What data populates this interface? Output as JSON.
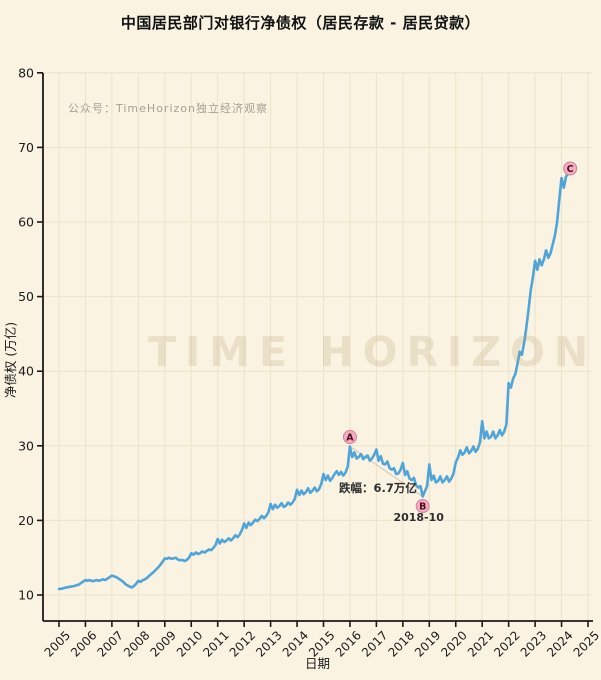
{
  "title": "中国居民部门对银行净债权（居民存款 - 居民贷款）",
  "watermark_top": "公众号：TimeHorizon独立经济观察",
  "watermark_center": "TIME HORIZON",
  "chart_data": {
    "type": "line",
    "title": "中国居民部门对银行净债权（居民存款 - 居民贷款）",
    "xlabel": "日期",
    "ylabel": "净债权 (万亿)",
    "legend": [],
    "grid": true,
    "x_start": "2005-01",
    "freq": "monthly",
    "x_ticks": [
      "2005",
      "2006",
      "2007",
      "2008",
      "2009",
      "2010",
      "2011",
      "2012",
      "2013",
      "2014",
      "2015",
      "2016",
      "2017",
      "2018",
      "2019",
      "2020",
      "2021",
      "2022",
      "2023",
      "2024",
      "2025"
    ],
    "y_ticks": [
      "10",
      "20",
      "30",
      "40",
      "50",
      "60",
      "70",
      "80"
    ],
    "ylim": [
      6.5,
      80
    ],
    "xlim": [
      2004.4,
      2025.2
    ],
    "values": [
      10.8,
      10.85,
      10.9,
      11.0,
      11.05,
      11.1,
      11.15,
      11.2,
      11.3,
      11.4,
      11.6,
      11.8,
      12.0,
      11.9,
      12.0,
      11.85,
      11.9,
      12.0,
      11.9,
      12.0,
      12.1,
      12.0,
      12.2,
      12.4,
      12.6,
      12.5,
      12.4,
      12.2,
      12.0,
      11.8,
      11.5,
      11.3,
      11.15,
      11.0,
      11.2,
      11.5,
      11.9,
      11.75,
      12.0,
      12.1,
      12.3,
      12.6,
      12.85,
      13.1,
      13.4,
      13.7,
      14.05,
      14.45,
      14.9,
      14.85,
      15.0,
      14.85,
      14.9,
      15.0,
      14.75,
      14.65,
      14.7,
      14.55,
      14.7,
      15.0,
      15.6,
      15.4,
      15.7,
      15.5,
      15.6,
      15.85,
      15.7,
      15.9,
      16.1,
      16.0,
      16.3,
      16.7,
      17.5,
      16.9,
      17.4,
      17.1,
      17.3,
      17.6,
      17.3,
      17.6,
      18.0,
      17.75,
      18.1,
      18.7,
      19.6,
      19.0,
      19.7,
      19.35,
      19.7,
      20.1,
      19.9,
      20.2,
      20.6,
      20.3,
      20.6,
      21.1,
      22.2,
      21.5,
      22.1,
      21.7,
      21.9,
      22.3,
      21.8,
      22.0,
      22.4,
      22.1,
      22.4,
      22.9,
      24.1,
      23.4,
      24.0,
      23.5,
      23.8,
      24.3,
      23.7,
      24.0,
      24.4,
      23.9,
      24.2,
      24.9,
      26.2,
      25.4,
      26.0,
      25.3,
      25.7,
      26.2,
      26.6,
      26.1,
      26.5,
      26.0,
      26.4,
      27.2,
      29.9,
      28.5,
      29.1,
      28.3,
      28.5,
      28.9,
      28.2,
      28.5,
      28.7,
      28.0,
      28.3,
      28.8,
      29.5,
      28.0,
      28.6,
      27.6,
      27.5,
      27.9,
      27.0,
      26.8,
      27.0,
      26.2,
      26.3,
      26.8,
      27.7,
      26.1,
      26.6,
      25.6,
      25.4,
      25.7,
      24.7,
      24.4,
      24.6,
      23.2,
      23.9,
      24.6,
      27.5,
      25.4,
      26.0,
      25.1,
      25.3,
      25.9,
      25.1,
      25.4,
      25.9,
      25.2,
      25.6,
      26.3,
      27.8,
      28.4,
      29.4,
      28.8,
      29.1,
      29.8,
      29.0,
      29.3,
      29.9,
      29.2,
      29.6,
      30.5,
      33.3,
      31.0,
      31.9,
      31.0,
      31.2,
      31.9,
      31.0,
      31.4,
      32.1,
      31.4,
      31.9,
      32.9,
      38.4,
      37.8,
      39.0,
      39.6,
      41.0,
      42.6,
      42.2,
      43.8,
      45.8,
      48.2,
      50.8,
      52.6,
      54.8,
      53.6,
      55.0,
      54.2,
      55.0,
      56.2,
      55.2,
      55.8,
      57.0,
      58.2,
      60.0,
      63.0,
      65.9,
      64.6,
      66.1,
      66.5
    ],
    "annotations": {
      "a": {
        "letter": "A",
        "month": "2016-01",
        "value": 29.9
      },
      "b": {
        "letter": "B",
        "month": "2018-10",
        "value": 23.2,
        "caption": "2018-10"
      },
      "c": {
        "letter": "C",
        "month": "2024-04",
        "value": 66.5
      },
      "drop_label": "跌幅：6.7万亿"
    },
    "colors": {
      "background": "#faf3e1",
      "line": "#4fa4da",
      "grid": "#ece3c9",
      "axis": "#1a1a1a",
      "tick_text": "#1b1b1b",
      "annotation_text": "#2e2e2e",
      "marker_fill": "#f4adbf",
      "marker_stroke": "#d2809a",
      "marker_letter": "#4d0f20",
      "trend_line": "#b3a27e"
    }
  }
}
